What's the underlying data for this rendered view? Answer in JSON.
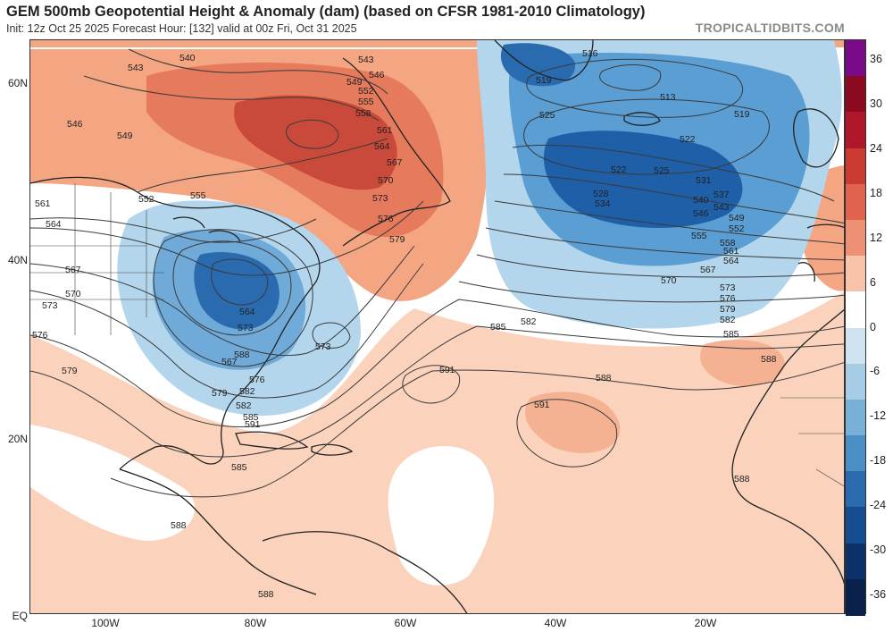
{
  "header": {
    "title": "GEM 500mb Geopotential Height & Anomaly (dam) (based on CFSR 1981-2010 Climatology)",
    "subtitle": "Init: 12z Oct 25 2025   Forecast Hour: [132]   valid at 00z Fri, Oct 31 2025",
    "brand": "TROPICALTIDBITS.COM"
  },
  "map": {
    "region": "North Atlantic",
    "lat_labels": [
      "60N",
      "40N",
      "20N",
      "EQ"
    ],
    "lon_labels": [
      "100W",
      "80W",
      "60W",
      "40W",
      "20W"
    ],
    "contour_labels": [
      "516",
      "519",
      "513",
      "519",
      "525",
      "522",
      "522",
      "525",
      "528",
      "531",
      "534",
      "537",
      "540",
      "543",
      "546",
      "549",
      "552",
      "555",
      "558",
      "561",
      "564",
      "567",
      "570",
      "573",
      "576",
      "579",
      "582",
      "585",
      "588",
      "591",
      "591",
      "588",
      "585",
      "582",
      "579",
      "576",
      "573",
      "570",
      "567",
      "564",
      "561",
      "558",
      "555",
      "552",
      "549",
      "546",
      "543",
      "540",
      "543",
      "546",
      "549",
      "552",
      "555",
      "561",
      "564",
      "567",
      "570",
      "573",
      "576",
      "579",
      "585",
      "588",
      "588",
      "588",
      "591",
      "588",
      "582",
      "567",
      "564",
      "573",
      "576",
      "579",
      "582",
      "585",
      "573"
    ],
    "colors": {
      "strong_positive": "#c0392b",
      "positive": "#f4a582",
      "light_positive": "#fbd3bd",
      "neutral": "#ffffff",
      "light_negative": "#b4d6ec",
      "negative": "#5a9ed3",
      "strong_negative": "#1f5fa8",
      "land_outline": "#222222"
    }
  },
  "colorbar": {
    "labels": [
      "36",
      "30",
      "24",
      "18",
      "12",
      "6",
      "0",
      "-6",
      "-12",
      "-18",
      "-24",
      "-30",
      "-36"
    ],
    "colors": [
      "#7a0a8a",
      "#8b0a1f",
      "#b0172a",
      "#cc3b32",
      "#e0644d",
      "#ee9073",
      "#f8c3a8",
      "#ffffff",
      "#cfe3f1",
      "#a7cce6",
      "#79b0d8",
      "#4b8fc7",
      "#2a6bb0",
      "#164c92",
      "#0c3068",
      "#08204a"
    ]
  }
}
